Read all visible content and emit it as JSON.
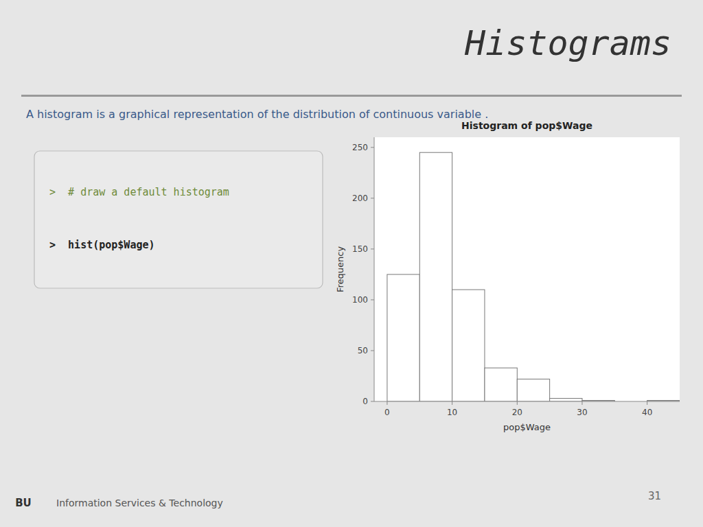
{
  "chart_data": {
    "type": "histogram",
    "title": "Histogram of pop$Wage",
    "subtitle": "A histogram is a graphical representation of the distribution of continuous variable .",
    "xlabel": "pop$Wage",
    "ylabel": "Frequency",
    "bins": [
      0,
      5,
      10,
      15,
      20,
      25,
      30,
      35,
      40,
      45
    ],
    "values": [
      125,
      245,
      110,
      33,
      22,
      3,
      1,
      0,
      1
    ],
    "color": "white",
    "xlim": [
      -2,
      45
    ],
    "ylim": [
      0,
      260
    ],
    "xticks": [
      0,
      10,
      20,
      30,
      40
    ],
    "yticks": [
      0,
      50,
      100,
      150,
      200,
      250
    ],
    "grid": false,
    "annotations": [
      "Histograms",
      ">  # draw a default histogram",
      ">  hist(pop$Wage)",
      "BU",
      "Information Services & Technology",
      "31"
    ]
  }
}
